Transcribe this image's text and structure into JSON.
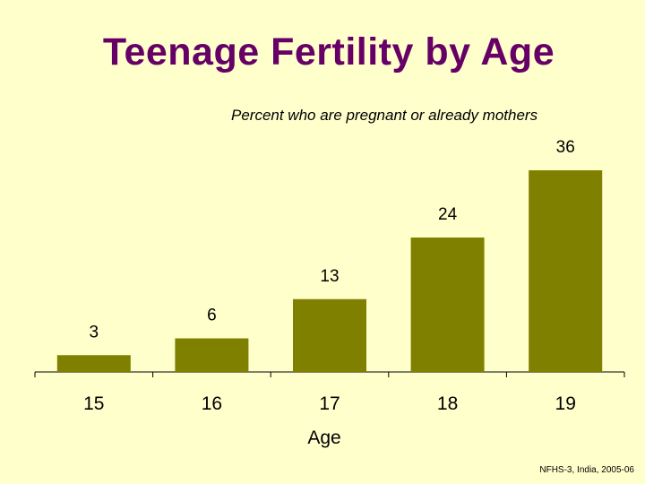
{
  "title": "Teenage Fertility by Age",
  "subtitle": "Percent who are pregnant or already mothers",
  "source": "NFHS-3, India, 2005-06",
  "colors": {
    "bar": "#808000",
    "background": "#FFFFCC",
    "title": "#660066"
  },
  "chart_data": {
    "type": "bar",
    "title": "Teenage Fertility by Age",
    "subtitle": "Percent who are pregnant or already mothers",
    "xlabel": "Age",
    "ylabel": "",
    "categories": [
      "15",
      "16",
      "17",
      "18",
      "19"
    ],
    "values": [
      3,
      6,
      13,
      24,
      36
    ],
    "data_labels": [
      "3",
      "6",
      "13",
      "24",
      "36"
    ],
    "ylim": [
      0,
      40
    ],
    "grid": false,
    "legend": "none"
  }
}
